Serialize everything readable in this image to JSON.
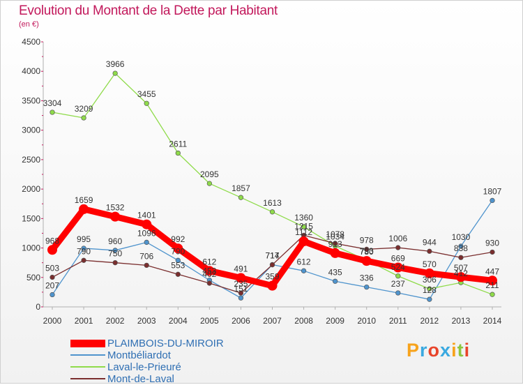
{
  "chart_data": {
    "type": "line",
    "title": "Evolution du Montant de la Dette par Habitant",
    "subtitle": "(en €)",
    "x": [
      "2000",
      "2001",
      "2002",
      "2003",
      "2004",
      "2005",
      "2006",
      "2007",
      "2008",
      "2009",
      "2010",
      "2011",
      "2012",
      "2013",
      "2014"
    ],
    "ylim": [
      0,
      4500
    ],
    "yticks": [
      0,
      500,
      1000,
      1500,
      2000,
      2500,
      3000,
      3500,
      4000,
      4500
    ],
    "grid": false,
    "legend_position": "bottom-left",
    "series": [
      {
        "name": "PLAIMBOIS-DU-MIROIR",
        "color": "#ff0000",
        "emphasis": true,
        "values": [
          968,
          1659,
          1532,
          1401,
          992,
          612,
          491,
          359,
          1112,
          913,
          780,
          669,
          570,
          507,
          447
        ],
        "labels": [
          "968",
          "1659",
          "1532",
          "1401",
          "992",
          "612",
          "491",
          "359",
          "1112",
          "913",
          "780",
          "669",
          "570",
          "507",
          "447"
        ]
      },
      {
        "name": "Montbéliardot",
        "color": "#4f94cd",
        "values": [
          207,
          995,
          960,
          1096,
          790,
          453,
          151,
          717,
          612,
          435,
          336,
          237,
          128,
          1030,
          1807
        ],
        "labels": [
          "207",
          "995",
          "960",
          "1096",
          "790",
          "453",
          "151",
          "717",
          "612",
          "435",
          "336",
          "237",
          "128",
          "1030",
          "1807"
        ]
      },
      {
        "name": "Laval-le-Prieuré",
        "color": "#8fdb4a",
        "values": [
          3304,
          3209,
          3966,
          3455,
          2611,
          2095,
          1857,
          1613,
          1360,
          1034,
          793,
          524,
          306,
          412,
          211
        ],
        "labels": [
          "3304",
          "3209",
          "3966",
          "3455",
          "2611",
          "2095",
          "1857",
          "1613",
          "1360",
          "1034",
          "793",
          "524",
          "306",
          "412",
          "211"
        ]
      },
      {
        "name": "Mont-de-Laval",
        "color": "#7a2e2e",
        "values": [
          503,
          790,
          750,
          706,
          553,
          402,
          235,
          714,
          1215,
          1078,
          978,
          1006,
          944,
          838,
          930
        ],
        "labels": [
          "503",
          "790",
          "750",
          "706",
          "553",
          "402",
          "235",
          "714",
          "1215",
          "1078",
          "978",
          "1006",
          "944",
          "838",
          "930"
        ]
      }
    ]
  },
  "brand": {
    "text": "Proxiti",
    "colors": [
      "#f7a31c",
      "#3aa9e0",
      "#e8442a",
      "#3aa9e0",
      "#f7a31c",
      "#8cc63f",
      "#e8442a"
    ]
  }
}
